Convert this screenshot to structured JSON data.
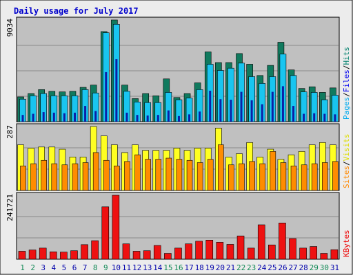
{
  "title": "Daily usage for July 2017",
  "colors": {
    "background": "#ececec",
    "panel": "#c0c0c0",
    "border": "#000000",
    "title_text": "#0000cc",
    "hits": "#107a5e",
    "files": "#19c5f0",
    "pages": "#0b1fa8",
    "visits": "#ffff22",
    "sites": "#ff8c00",
    "kbytes": "#ee1111",
    "weekday_label": "#0000aa",
    "weekend_label": "#118855",
    "label_hits": "#00806c",
    "label_files": "#0000ee",
    "label_pages": "#00aaee",
    "label_visits": "#dddd00",
    "label_sites": "#ff8800",
    "label_kbytes": "#ee0000"
  },
  "chart_data": [
    {
      "type": "bar",
      "name": "hits-files-pages",
      "ymax_label": "9034",
      "ylim": [
        0,
        9034
      ],
      "grid": true,
      "legend_labels": [
        {
          "key": "pages",
          "text": "Pages"
        },
        {
          "key": "sep",
          "text": "/"
        },
        {
          "key": "files",
          "text": "Files"
        },
        {
          "key": "sep",
          "text": "/"
        },
        {
          "key": "hits",
          "text": "Hits"
        }
      ],
      "categories": [
        "1",
        "2",
        "3",
        "4",
        "5",
        "6",
        "7",
        "8",
        "9",
        "10",
        "11",
        "12",
        "13",
        "14",
        "15",
        "16",
        "17",
        "18",
        "19",
        "20",
        "21",
        "22",
        "23",
        "24",
        "25",
        "26",
        "27",
        "28",
        "29",
        "30",
        "31"
      ],
      "series": [
        {
          "key": "hits",
          "values": [
            2200,
            2500,
            2850,
            2700,
            2650,
            2700,
            3050,
            3250,
            8000,
            9034,
            3250,
            2050,
            2500,
            2300,
            3800,
            2150,
            2500,
            3450,
            6200,
            5250,
            5250,
            6050,
            5100,
            4100,
            5000,
            7050,
            4600,
            2950,
            3100,
            2600,
            3000
          ]
        },
        {
          "key": "files",
          "values": [
            2000,
            2300,
            2500,
            2300,
            2300,
            2300,
            2850,
            2550,
            7900,
            8650,
            2700,
            1750,
            1700,
            1700,
            2600,
            1950,
            2100,
            2850,
            5100,
            4550,
            4750,
            5200,
            4000,
            3400,
            4000,
            6000,
            4100,
            2650,
            2600,
            1950,
            2350
          ]
        },
        {
          "key": "pages",
          "values": [
            600,
            700,
            850,
            800,
            750,
            800,
            1400,
            950,
            4400,
            5550,
            800,
            600,
            550,
            600,
            1000,
            500,
            650,
            900,
            2750,
            2000,
            1950,
            2650,
            1900,
            1550,
            2650,
            3150,
            1400,
            700,
            750,
            700,
            650
          ]
        }
      ]
    },
    {
      "type": "bar",
      "name": "visits-sites",
      "ymax_label": "287",
      "ylim": [
        0,
        287
      ],
      "grid": true,
      "legend_labels": [
        {
          "key": "sites",
          "text": "Sites"
        },
        {
          "key": "sep",
          "text": "/"
        },
        {
          "key": "visits",
          "text": "Visits"
        }
      ],
      "categories": [
        "1",
        "2",
        "3",
        "4",
        "5",
        "6",
        "7",
        "8",
        "9",
        "10",
        "11",
        "12",
        "13",
        "14",
        "15",
        "16",
        "17",
        "18",
        "19",
        "20",
        "21",
        "22",
        "23",
        "24",
        "25",
        "26",
        "27",
        "28",
        "29",
        "30",
        "31"
      ],
      "series": [
        {
          "key": "visits",
          "values": [
            205,
            190,
            195,
            195,
            185,
            150,
            150,
            287,
            245,
            205,
            170,
            205,
            180,
            180,
            180,
            190,
            180,
            190,
            190,
            280,
            150,
            165,
            215,
            150,
            185,
            140,
            160,
            175,
            205,
            215,
            205
          ]
        },
        {
          "key": "sites",
          "values": [
            110,
            120,
            135,
            120,
            115,
            120,
            125,
            170,
            135,
            110,
            130,
            160,
            140,
            140,
            145,
            140,
            135,
            125,
            140,
            205,
            115,
            120,
            130,
            120,
            175,
            125,
            110,
            115,
            120,
            125,
            130
          ]
        }
      ]
    },
    {
      "type": "bar",
      "name": "kbytes",
      "ymax_label": "241721",
      "ylim": [
        0,
        241721
      ],
      "grid": true,
      "legend_labels": [
        {
          "key": "kbytes",
          "text": "KBytes"
        }
      ],
      "categories": [
        "1",
        "2",
        "3",
        "4",
        "5",
        "6",
        "7",
        "8",
        "9",
        "10",
        "11",
        "12",
        "13",
        "14",
        "15",
        "16",
        "17",
        "18",
        "19",
        "20",
        "21",
        "22",
        "23",
        "24",
        "25",
        "26",
        "27",
        "28",
        "29",
        "30",
        "31"
      ],
      "series": [
        {
          "key": "kbytes",
          "values": [
            30000,
            35000,
            42000,
            28000,
            27000,
            32000,
            55000,
            70000,
            198000,
            241721,
            58000,
            30000,
            32000,
            52000,
            22000,
            42000,
            58000,
            68000,
            72000,
            64000,
            56000,
            88000,
            42000,
            130000,
            54000,
            137000,
            78000,
            42000,
            48000,
            22000,
            36000
          ]
        }
      ]
    }
  ],
  "x_axis": {
    "labels": [
      "1",
      "2",
      "3",
      "4",
      "5",
      "6",
      "7",
      "8",
      "9",
      "10",
      "11",
      "12",
      "13",
      "14",
      "15",
      "16",
      "17",
      "18",
      "19",
      "20",
      "21",
      "22",
      "23",
      "24",
      "25",
      "26",
      "27",
      "28",
      "29",
      "30",
      "31"
    ],
    "weekend_days": [
      "1",
      "2",
      "8",
      "9",
      "15",
      "16",
      "22",
      "23",
      "29",
      "30"
    ]
  }
}
